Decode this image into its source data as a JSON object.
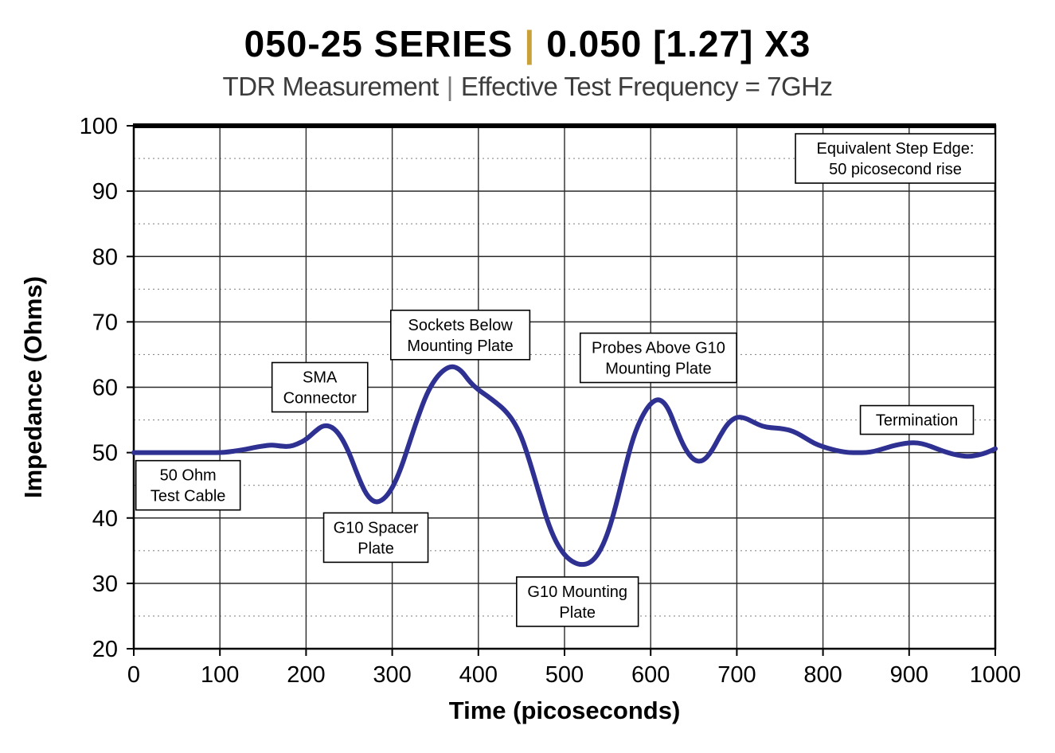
{
  "header": {
    "series": "050-25 SERIES",
    "sep": "|",
    "spec": "0.050 [1.27] X3",
    "subtitle_left": "TDR Measurement",
    "subtitle_sep": "|",
    "subtitle_right": "Effective Test Frequency = 7GHz"
  },
  "chart_data": {
    "type": "line",
    "title": "050-25 SERIES | 0.050 [1.27] X3",
    "subtitle": "TDR Measurement | Effective Test Frequency = 7GHz",
    "xlabel": "Time (picoseconds)",
    "ylabel": "Impedance (Ohms)",
    "xlim": [
      0,
      1000
    ],
    "ylim": [
      20,
      100
    ],
    "xticks": [
      0,
      100,
      200,
      300,
      400,
      500,
      600,
      700,
      800,
      900,
      1000
    ],
    "yticks": [
      20,
      30,
      40,
      50,
      60,
      70,
      80,
      90,
      100
    ],
    "y_minor_ticks": [
      25,
      35,
      45,
      55,
      65,
      75,
      85,
      95
    ],
    "grid": "major-solid-minor-dashed",
    "legend": "none",
    "line_color": "#2e3192",
    "line_width": 6,
    "series": [
      {
        "name": "Impedance",
        "x": [
          0,
          10,
          20,
          30,
          40,
          50,
          60,
          70,
          80,
          90,
          100,
          110,
          120,
          130,
          140,
          150,
          160,
          170,
          180,
          190,
          200,
          210,
          220,
          230,
          240,
          250,
          260,
          270,
          280,
          290,
          300,
          310,
          320,
          330,
          340,
          350,
          360,
          370,
          380,
          390,
          400,
          410,
          420,
          430,
          440,
          450,
          460,
          470,
          480,
          490,
          500,
          510,
          520,
          530,
          540,
          550,
          560,
          570,
          580,
          590,
          600,
          610,
          620,
          630,
          640,
          650,
          660,
          670,
          680,
          690,
          700,
          710,
          720,
          730,
          740,
          750,
          760,
          770,
          780,
          790,
          800,
          810,
          820,
          830,
          840,
          850,
          860,
          870,
          880,
          890,
          900,
          910,
          920,
          930,
          940,
          950,
          960,
          970,
          980,
          990,
          1000
        ],
        "y": [
          50,
          50,
          50,
          50,
          50,
          50,
          50,
          50,
          50,
          50,
          50,
          50.1,
          50.3,
          50.5,
          50.8,
          51.0,
          51.2,
          51.0,
          50.9,
          51.3,
          52.0,
          53.2,
          54.2,
          54.0,
          52.6,
          50.0,
          46.5,
          43.5,
          42.3,
          42.8,
          44.5,
          47.5,
          51.5,
          55.5,
          59.0,
          61.3,
          62.7,
          63.3,
          62.6,
          60.8,
          59.6,
          58.7,
          57.7,
          56.6,
          55.0,
          52.5,
          48.5,
          44.0,
          39.5,
          36.3,
          34.3,
          33.2,
          32.8,
          33.1,
          34.6,
          37.5,
          42.0,
          47.5,
          52.5,
          55.6,
          57.6,
          58.3,
          57.0,
          53.5,
          50.5,
          48.8,
          48.6,
          50.0,
          52.5,
          54.6,
          55.5,
          55.3,
          54.6,
          54.0,
          53.8,
          53.7,
          53.5,
          53.0,
          52.2,
          51.4,
          50.9,
          50.5,
          50.2,
          50.0,
          50.0,
          50.0,
          50.2,
          50.6,
          51.0,
          51.3,
          51.5,
          51.5,
          51.2,
          50.7,
          50.2,
          49.8,
          49.5,
          49.4,
          49.6,
          50.0,
          50.6
        ]
      }
    ],
    "annotations": [
      {
        "name": "equivalent-step-edge",
        "lines": [
          "Equivalent Step Edge:",
          "50 picosecond rise"
        ],
        "x": 884,
        "y": 95
      },
      {
        "name": "sockets-below-mounting-plate",
        "lines": [
          "Sockets Below",
          "Mounting Plate"
        ],
        "x": 379,
        "y": 68
      },
      {
        "name": "probes-above-g10-mounting-plate",
        "lines": [
          "Probes Above G10",
          "Mounting Plate"
        ],
        "x": 609,
        "y": 64.5
      },
      {
        "name": "sma-connector",
        "lines": [
          "SMA",
          "Connector"
        ],
        "x": 216,
        "y": 60
      },
      {
        "name": "termination",
        "lines": [
          "Termination"
        ],
        "x": 909,
        "y": 55
      },
      {
        "name": "50-ohm-test-cable",
        "lines": [
          "50 Ohm",
          "Test Cable"
        ],
        "x": 63,
        "y": 45
      },
      {
        "name": "g10-spacer-plate",
        "lines": [
          "G10 Spacer",
          "Plate"
        ],
        "x": 281,
        "y": 37
      },
      {
        "name": "g10-mounting-plate",
        "lines": [
          "G10 Mounting",
          "Plate"
        ],
        "x": 515,
        "y": 27.2
      }
    ]
  }
}
